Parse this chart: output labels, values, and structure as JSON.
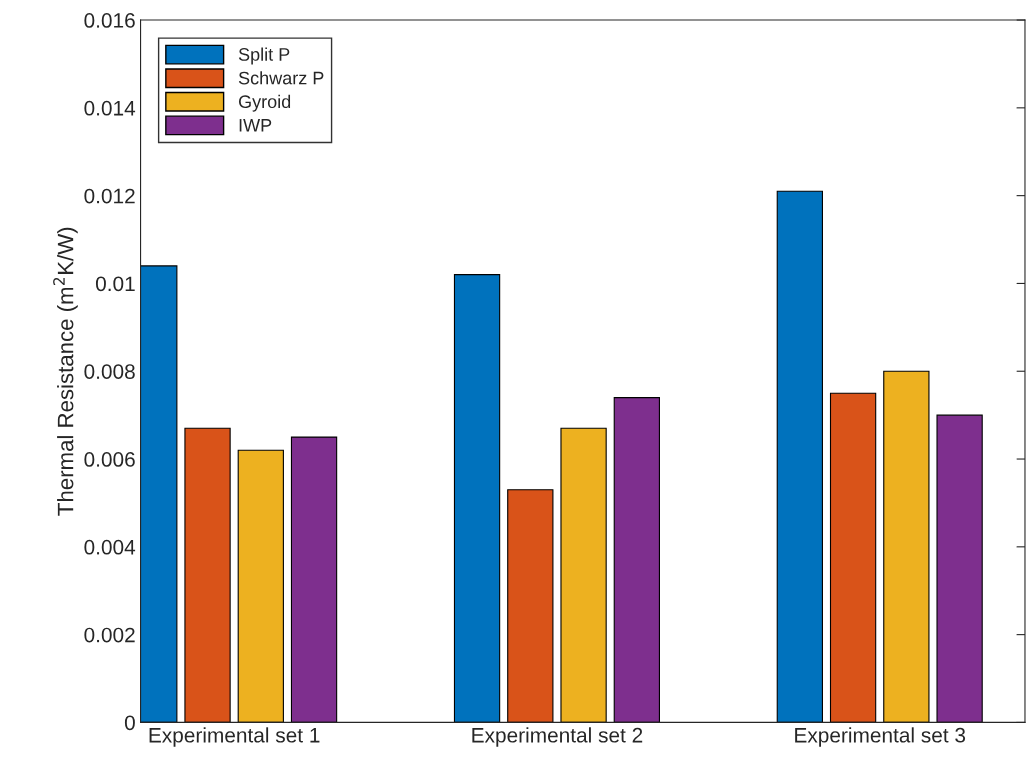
{
  "chart_data": {
    "type": "bar",
    "ylabel": "Thermal Resistance (m$^{2}$K/W)",
    "categories": [
      "Experimental set 1",
      "Experimental set 2",
      "Experimental set 3"
    ],
    "series": [
      {
        "name": "Split P",
        "color": "#0072bd",
        "values": [
          0.0104,
          0.0102,
          0.0121
        ]
      },
      {
        "name": "Schwarz P",
        "color": "#d95319",
        "values": [
          0.0067,
          0.0053,
          0.0075
        ]
      },
      {
        "name": "Gyroid",
        "color": "#edb120",
        "values": [
          0.0062,
          0.0067,
          0.008
        ]
      },
      {
        "name": "IWP",
        "color": "#7e2f8e",
        "values": [
          0.0065,
          0.0074,
          0.007
        ]
      }
    ],
    "ylim": [
      0,
      0.016
    ],
    "yticks": [
      0,
      0.002,
      0.004,
      0.006,
      0.008,
      0.01,
      0.012,
      0.014,
      0.016
    ],
    "grid": false,
    "legend": "top left"
  }
}
